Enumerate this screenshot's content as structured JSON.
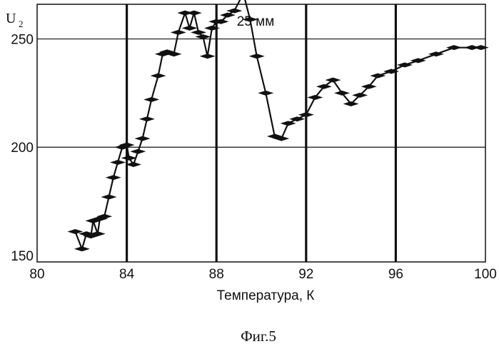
{
  "chart_data": {
    "type": "line",
    "title": "25 мм",
    "xlabel": "Температура, К",
    "ylabel": "U",
    "ylabel_subscript": "2",
    "caption": "Фиг.5",
    "xlim": [
      80,
      100
    ],
    "ylim": [
      147,
      266
    ],
    "xticks": [
      "80",
      "84",
      "88",
      "92",
      "96",
      "100"
    ],
    "yticks": [
      "150",
      "200",
      "250"
    ],
    "grid": true,
    "series": [
      {
        "x": [
          81.7,
          82.0,
          82.2,
          82.4,
          82.5,
          82.7,
          82.8,
          83.0,
          83.2,
          83.4,
          83.6,
          83.8,
          84.0,
          84.1,
          84.3,
          84.5,
          84.7,
          84.9,
          85.1,
          85.4,
          85.6,
          85.8,
          86.1,
          86.3,
          86.6,
          86.8,
          87.0,
          87.2,
          87.4,
          87.6,
          87.8,
          88.0,
          88.2,
          88.5,
          88.8,
          89.2,
          89.5,
          89.8,
          90.2,
          90.6,
          90.9,
          91.2,
          91.6,
          92.0,
          92.4,
          92.8,
          93.2,
          93.6,
          94.0,
          94.4,
          94.8,
          95.2,
          95.8,
          96.4,
          97.0,
          97.8,
          98.6,
          99.4,
          99.8
        ],
        "y": [
          161,
          153,
          160,
          159,
          166,
          160,
          167,
          168,
          177,
          186,
          193,
          200,
          201,
          195,
          192,
          198,
          204,
          213,
          222,
          233,
          243,
          244,
          243,
          253,
          262,
          255,
          262,
          253,
          251,
          242,
          255,
          258,
          258,
          261,
          263,
          271,
          259,
          242,
          225,
          205,
          204,
          211,
          213,
          215,
          223,
          228,
          231,
          225,
          220,
          224,
          228,
          233,
          235,
          238,
          240,
          243,
          246,
          246,
          246
        ]
      }
    ]
  }
}
